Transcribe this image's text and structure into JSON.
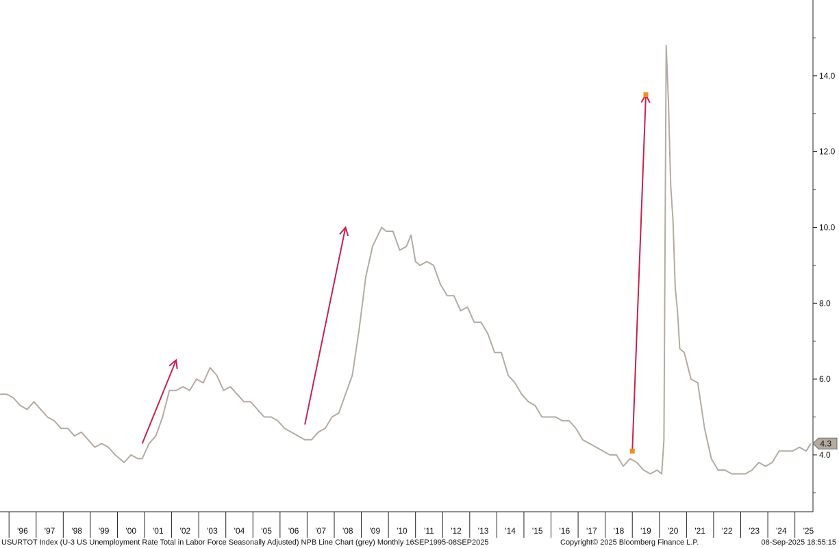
{
  "chart_data": {
    "type": "line",
    "title": "",
    "xlabel": "",
    "ylabel": "",
    "ylim": [
      2.5,
      16.0
    ],
    "xlim": [
      "1995-09",
      "2025-09"
    ],
    "grid": false,
    "y_ticks": [
      4.0,
      6.0,
      8.0,
      10.0,
      12.0,
      14.0
    ],
    "y_tick_labels": [
      "4.0",
      "6.0",
      "8.0",
      "10.0",
      "12.0",
      "14.0"
    ],
    "x_tick_labels": [
      "'96",
      "'97",
      "'98",
      "'99",
      "'00",
      "'01",
      "'02",
      "'03",
      "'04",
      "'05",
      "'06",
      "'07",
      "'08",
      "'09",
      "'10",
      "'11",
      "'12",
      "'13",
      "'14",
      "'15",
      "'16",
      "'17",
      "'18",
      "'19",
      "'20",
      "'21",
      "'22",
      "'23",
      "'24",
      "'25"
    ],
    "series": [
      {
        "color": "#b3aba2",
        "points": [
          [
            "1995-09",
            5.6
          ],
          [
            "1995-12",
            5.6
          ],
          [
            "1996-03",
            5.5
          ],
          [
            "1996-06",
            5.3
          ],
          [
            "1996-09",
            5.2
          ],
          [
            "1996-12",
            5.4
          ],
          [
            "1997-03",
            5.2
          ],
          [
            "1997-06",
            5.0
          ],
          [
            "1997-09",
            4.9
          ],
          [
            "1997-12",
            4.7
          ],
          [
            "1998-03",
            4.7
          ],
          [
            "1998-06",
            4.5
          ],
          [
            "1998-09",
            4.6
          ],
          [
            "1998-12",
            4.4
          ],
          [
            "1999-03",
            4.2
          ],
          [
            "1999-06",
            4.3
          ],
          [
            "1999-09",
            4.2
          ],
          [
            "1999-12",
            4.0
          ],
          [
            "2000-04",
            3.8
          ],
          [
            "2000-07",
            4.0
          ],
          [
            "2000-10",
            3.9
          ],
          [
            "2000-12",
            3.9
          ],
          [
            "2001-03",
            4.3
          ],
          [
            "2001-06",
            4.5
          ],
          [
            "2001-09",
            5.0
          ],
          [
            "2001-12",
            5.7
          ],
          [
            "2002-03",
            5.7
          ],
          [
            "2002-06",
            5.8
          ],
          [
            "2002-09",
            5.7
          ],
          [
            "2002-12",
            6.0
          ],
          [
            "2003-03",
            5.9
          ],
          [
            "2003-06",
            6.3
          ],
          [
            "2003-09",
            6.1
          ],
          [
            "2003-12",
            5.7
          ],
          [
            "2004-03",
            5.8
          ],
          [
            "2004-06",
            5.6
          ],
          [
            "2004-09",
            5.4
          ],
          [
            "2004-12",
            5.4
          ],
          [
            "2005-03",
            5.2
          ],
          [
            "2005-06",
            5.0
          ],
          [
            "2005-09",
            5.0
          ],
          [
            "2005-12",
            4.9
          ],
          [
            "2006-03",
            4.7
          ],
          [
            "2006-06",
            4.6
          ],
          [
            "2006-09",
            4.5
          ],
          [
            "2006-12",
            4.4
          ],
          [
            "2007-03",
            4.4
          ],
          [
            "2007-06",
            4.6
          ],
          [
            "2007-09",
            4.7
          ],
          [
            "2007-12",
            5.0
          ],
          [
            "2008-03",
            5.1
          ],
          [
            "2008-06",
            5.6
          ],
          [
            "2008-09",
            6.1
          ],
          [
            "2008-12",
            7.3
          ],
          [
            "2009-03",
            8.7
          ],
          [
            "2009-06",
            9.5
          ],
          [
            "2009-10",
            10.0
          ],
          [
            "2009-12",
            9.9
          ],
          [
            "2010-03",
            9.9
          ],
          [
            "2010-06",
            9.4
          ],
          [
            "2010-09",
            9.5
          ],
          [
            "2010-11",
            9.8
          ],
          [
            "2011-01",
            9.1
          ],
          [
            "2011-03",
            9.0
          ],
          [
            "2011-06",
            9.1
          ],
          [
            "2011-09",
            9.0
          ],
          [
            "2011-12",
            8.5
          ],
          [
            "2012-03",
            8.2
          ],
          [
            "2012-06",
            8.2
          ],
          [
            "2012-09",
            7.8
          ],
          [
            "2012-12",
            7.9
          ],
          [
            "2013-03",
            7.5
          ],
          [
            "2013-06",
            7.5
          ],
          [
            "2013-09",
            7.2
          ],
          [
            "2013-12",
            6.7
          ],
          [
            "2014-03",
            6.7
          ],
          [
            "2014-06",
            6.1
          ],
          [
            "2014-09",
            5.9
          ],
          [
            "2014-12",
            5.6
          ],
          [
            "2015-03",
            5.4
          ],
          [
            "2015-06",
            5.3
          ],
          [
            "2015-09",
            5.0
          ],
          [
            "2015-12",
            5.0
          ],
          [
            "2016-03",
            5.0
          ],
          [
            "2016-06",
            4.9
          ],
          [
            "2016-09",
            4.9
          ],
          [
            "2016-12",
            4.7
          ],
          [
            "2017-03",
            4.4
          ],
          [
            "2017-06",
            4.3
          ],
          [
            "2017-09",
            4.2
          ],
          [
            "2017-12",
            4.1
          ],
          [
            "2018-03",
            4.0
          ],
          [
            "2018-06",
            4.0
          ],
          [
            "2018-09",
            3.7
          ],
          [
            "2018-12",
            3.9
          ],
          [
            "2019-03",
            3.8
          ],
          [
            "2019-06",
            3.6
          ],
          [
            "2019-09",
            3.5
          ],
          [
            "2019-12",
            3.6
          ],
          [
            "2020-02",
            3.5
          ],
          [
            "2020-03",
            4.4
          ],
          [
            "2020-04",
            14.8
          ],
          [
            "2020-05",
            13.3
          ],
          [
            "2020-06",
            11.1
          ],
          [
            "2020-07",
            10.2
          ],
          [
            "2020-08",
            8.4
          ],
          [
            "2020-09",
            7.8
          ],
          [
            "2020-10",
            6.8
          ],
          [
            "2020-12",
            6.7
          ],
          [
            "2021-03",
            6.0
          ],
          [
            "2021-06",
            5.9
          ],
          [
            "2021-09",
            4.7
          ],
          [
            "2021-12",
            3.9
          ],
          [
            "2022-03",
            3.6
          ],
          [
            "2022-06",
            3.6
          ],
          [
            "2022-09",
            3.5
          ],
          [
            "2022-12",
            3.5
          ],
          [
            "2023-03",
            3.5
          ],
          [
            "2023-06",
            3.6
          ],
          [
            "2023-09",
            3.8
          ],
          [
            "2023-12",
            3.7
          ],
          [
            "2024-03",
            3.8
          ],
          [
            "2024-06",
            4.1
          ],
          [
            "2024-09",
            4.1
          ],
          [
            "2024-12",
            4.1
          ],
          [
            "2025-03",
            4.2
          ],
          [
            "2025-06",
            4.1
          ],
          [
            "2025-08",
            4.3
          ]
        ]
      }
    ],
    "last_value_label": "4.3",
    "annotations": [
      {
        "type": "arrow",
        "color": "#c8204f",
        "from": [
          "2000-12",
          4.3
        ],
        "to": [
          "2002-03",
          6.5
        ]
      },
      {
        "type": "arrow",
        "color": "#c8204f",
        "from": [
          "2006-12",
          4.8
        ],
        "to": [
          "2008-06",
          10.0
        ]
      },
      {
        "type": "arrow",
        "color": "#c8204f",
        "from": [
          "2019-01",
          4.1
        ],
        "to": [
          "2019-07",
          13.5
        ]
      }
    ],
    "markers": [
      {
        "color": "#f28e1c",
        "x": "2019-01",
        "y": 4.1
      },
      {
        "color": "#f28e1c",
        "x": "2019-07",
        "y": 13.5
      }
    ]
  },
  "footer": {
    "left": "USURTOT Index (U-3 US Unemployment Rate Total in Labor Force Seasonally Adjusted) NPB Line Chart (grey)  Monthly 16SEP1995-08SEP2025",
    "middle": "Copyright© 2025 Bloomberg Finance L.P.",
    "right": "08-Sep-2025 18:55:15"
  }
}
